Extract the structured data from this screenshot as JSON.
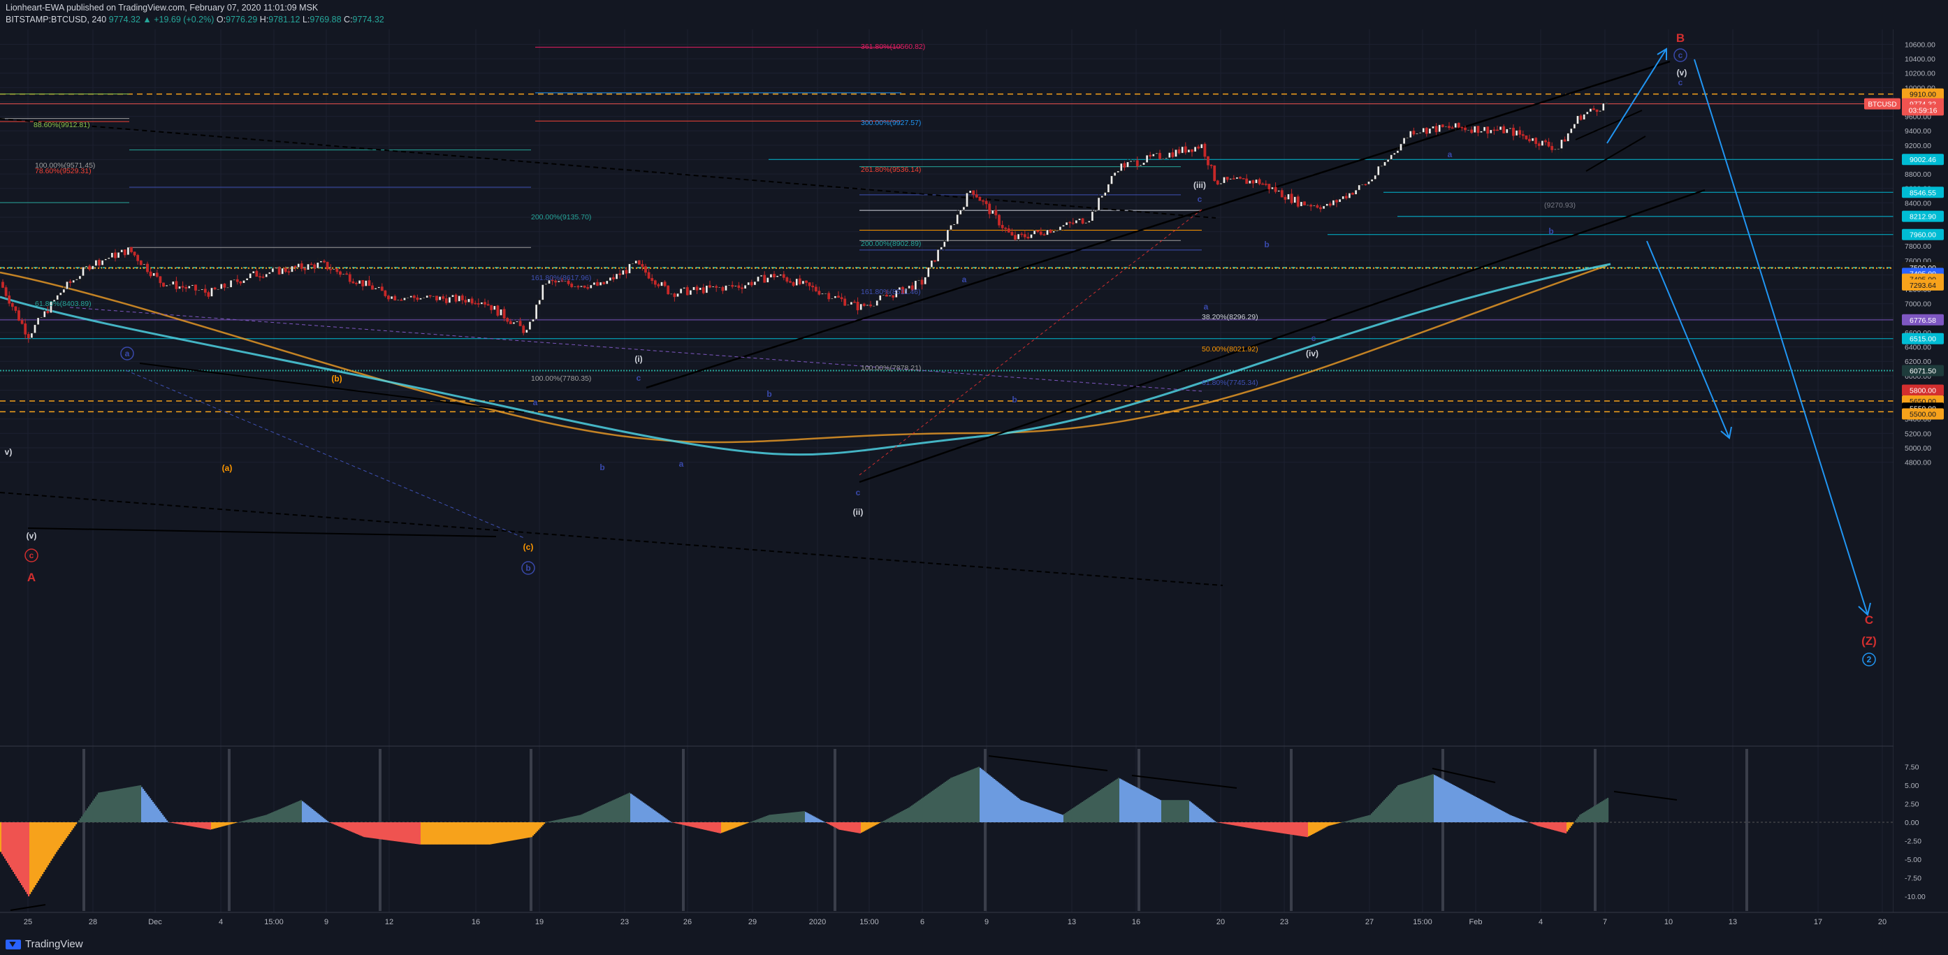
{
  "header": {
    "published": "Lionheart-EWA published on TradingView.com, February 07, 2020 11:01:09 MSK",
    "symbol": "BITSTAMP:BTCUSD, 240",
    "change": "9774.32 ▲ +19.69 (+0.2%)",
    "o_label": "O:",
    "o": "9776.29",
    "h_label": "H:",
    "h": "9781.12",
    "l_label": "L:",
    "l": "9769.88",
    "c_label": "C:",
    "c": "9774.32"
  },
  "footer": {
    "brand": "TradingView"
  },
  "colors": {
    "up": "#26a69a",
    "down": "#ef5350",
    "bg": "#131722",
    "grid": "#1e2230"
  },
  "price_axis": {
    "ticks": [
      "10600.00",
      "10400.00",
      "10200.00",
      "10000.00",
      "9800.00",
      "9600.00",
      "9400.00",
      "9200.00",
      "9000.00",
      "8800.00",
      "8600.00",
      "8400.00",
      "8200.00",
      "8000.00",
      "7800.00",
      "7600.00",
      "7400.00",
      "7200.00",
      "7000.00",
      "6800.00",
      "6600.00",
      "6400.00",
      "6200.00",
      "6000.00",
      "5800.00",
      "5600.00",
      "5400.00",
      "5200.00",
      "5000.00",
      "4800.00"
    ],
    "tags": [
      {
        "text": "9910.00",
        "price": 9910,
        "color": "#f7a21b",
        "fg": "#131722"
      },
      {
        "text": "9774.32",
        "price": 9774.32,
        "color": "#ef5350",
        "fg": "#ffffff"
      },
      {
        "text": "03:59:16",
        "price": 9690,
        "color": "#ef5350",
        "fg": "#ffffff"
      },
      {
        "text": "9002.46",
        "price": 9002.46,
        "color": "#00bcd4",
        "fg": "#ffffff"
      },
      {
        "text": "8546.55",
        "price": 8546.55,
        "color": "#00bcd4",
        "fg": "#ffffff"
      },
      {
        "text": "8212.90",
        "price": 8212.9,
        "color": "#00bcd4",
        "fg": "#ffffff"
      },
      {
        "text": "7960.00",
        "price": 7960,
        "color": "#00bcd4",
        "fg": "#ffffff"
      },
      {
        "text": "7500.00",
        "price": 7500,
        "color": "#1a1a1a",
        "fg": "#ffffff"
      },
      {
        "text": "7495.00",
        "price": 7420,
        "color": "#2962ff",
        "fg": "#ffffff"
      },
      {
        "text": "7495.00",
        "price": 7340,
        "color": "#f7a21b",
        "fg": "#131722"
      },
      {
        "text": "7293.64",
        "price": 7260,
        "color": "#f7a21b",
        "fg": "#131722"
      },
      {
        "text": "6776.58",
        "price": 6776.58,
        "color": "#7e57c2",
        "fg": "#ffffff"
      },
      {
        "text": "6515.00",
        "price": 6515,
        "color": "#00bcd4",
        "fg": "#ffffff"
      },
      {
        "text": "6071.50",
        "price": 6071.5,
        "color": "#1e3b3b",
        "fg": "#ffffff"
      },
      {
        "text": "5800.00",
        "price": 5800,
        "color": "#d32f2f",
        "fg": "#ffffff"
      },
      {
        "text": "5650.00",
        "price": 5650,
        "color": "#f7a21b",
        "fg": "#131722"
      },
      {
        "text": "5550.00",
        "price": 5550,
        "color": "#000000",
        "fg": "#ffffff"
      },
      {
        "text": "5500.00",
        "price": 5470,
        "color": "#f7a21b",
        "fg": "#131722"
      }
    ],
    "symbol_tag": "BTCUSD"
  },
  "osc_axis": {
    "ticks": [
      "7.50",
      "5.00",
      "2.50",
      "0.00",
      "-2.50",
      "-5.00",
      "-7.50",
      "-10.00"
    ]
  },
  "time_axis": {
    "ticks": [
      "25",
      "28",
      "Dec",
      "4",
      "15:00",
      "9",
      "12",
      "16",
      "19",
      "23",
      "26",
      "29",
      "2020",
      "15:00",
      "6",
      "9",
      "13",
      "16",
      "20",
      "23",
      "27",
      "15:00",
      "Feb",
      "4",
      "7",
      "10",
      "13",
      "17",
      "20"
    ]
  },
  "fib_labels": [
    {
      "text": "361.80%(10560.82)",
      "color": "#e91e63"
    },
    {
      "text": "300.00%(9927.57)",
      "color": "#2196f3"
    },
    {
      "text": "261.80%(9536.14)",
      "color": "#f44336"
    },
    {
      "text": "88.60%(9912.81)",
      "color": "#8bc34a"
    },
    {
      "text": "100.00%(9571.45)",
      "color": "#9e9e9e"
    },
    {
      "text": "78.60%(9529.31)",
      "color": "#f44336"
    },
    {
      "text": "200.00%(9135.70)",
      "color": "#26a69a"
    },
    {
      "text": "200.00%(8902.89)",
      "color": "#26a69a"
    },
    {
      "text": "161.80%(8617.96)",
      "color": "#3f51b5"
    },
    {
      "text": "161.80%(8511.46)",
      "color": "#3f51b5"
    },
    {
      "text": "61.80%(8403.89)",
      "color": "#26a69a"
    },
    {
      "text": "100.00%(7780.35)",
      "color": "#9e9e9e"
    },
    {
      "text": "100.00%(7878.21)",
      "color": "#9e9e9e"
    },
    {
      "text": "38.20%(8296.29)",
      "color": "#d1d4dc"
    },
    {
      "text": "50.00%(8021.92)",
      "color": "#ff9800"
    },
    {
      "text": "61.80%(7745.34)",
      "color": "#3f51b5"
    },
    {
      "text": "(9270.93)",
      "color": "#787b86"
    }
  ],
  "wave_labels": [
    {
      "text": "B",
      "color": "#d32f2f"
    },
    {
      "text": "c",
      "color": "#3949ab",
      "circled": true
    },
    {
      "text": "(v)",
      "color": "#d1d4dc"
    },
    {
      "text": "c",
      "color": "#3949ab"
    },
    {
      "text": "(iii)",
      "color": "#d1d4dc"
    },
    {
      "text": "c",
      "color": "#3949ab"
    },
    {
      "text": "a",
      "color": "#3949ab"
    },
    {
      "text": "b",
      "color": "#3949ab"
    },
    {
      "text": "a",
      "color": "#3949ab"
    },
    {
      "text": "b",
      "color": "#3949ab"
    },
    {
      "text": "c",
      "color": "#3949ab"
    },
    {
      "text": "(iv)",
      "color": "#d1d4dc"
    },
    {
      "text": "a",
      "color": "#3949ab"
    },
    {
      "text": "b",
      "color": "#3949ab"
    },
    {
      "text": "(i)",
      "color": "#d1d4dc"
    },
    {
      "text": "c",
      "color": "#3949ab"
    },
    {
      "text": "b",
      "color": "#3949ab"
    },
    {
      "text": "a",
      "color": "#3949ab"
    },
    {
      "text": "c",
      "color": "#3949ab"
    },
    {
      "text": "(ii)",
      "color": "#d1d4dc"
    },
    {
      "text": "a",
      "color": "#3949ab"
    },
    {
      "text": "b",
      "color": "#3949ab"
    },
    {
      "text": "(c)",
      "color": "#ff9800"
    },
    {
      "text": "b",
      "color": "#3949ab",
      "circled": true
    },
    {
      "text": "(b)",
      "color": "#ff9800"
    },
    {
      "text": "(a)",
      "color": "#ff9800"
    },
    {
      "text": "a",
      "color": "#3949ab",
      "circled": true
    },
    {
      "text": "(v)",
      "color": "#d1d4dc"
    },
    {
      "text": "c",
      "color": "#d32f2f",
      "circled": true
    },
    {
      "text": "A",
      "color": "#d32f2f"
    },
    {
      "text": "v)",
      "color": "#d1d4dc"
    },
    {
      "text": "C",
      "color": "#d32f2f"
    },
    {
      "text": "(Z)",
      "color": "#d32f2f"
    },
    {
      "text": "2",
      "color": "#2196f3",
      "circled": true
    }
  ]
}
